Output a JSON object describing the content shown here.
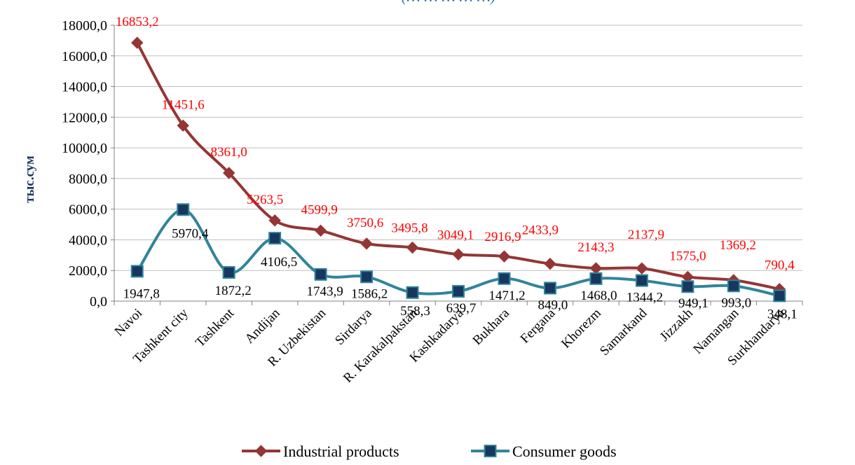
{
  "chart_data": {
    "type": "line",
    "title": "(… … … … …)",
    "ylabel": "тыс.сум",
    "ylim": [
      0,
      18000
    ],
    "yticks": [
      "0,0",
      "2000,0",
      "4000,0",
      "6000,0",
      "8000,0",
      "10000,0",
      "12000,0",
      "14000,0",
      "16000,0",
      "18000,0"
    ],
    "grid": "horizontal",
    "legend": "bottom",
    "categories": [
      "Navoi",
      "Tashkent city",
      "Tashkent",
      "Andijan",
      "R. Uzbekistan",
      "Sirdarya",
      "R. Karakalpakstan",
      "Kashkadarya",
      "Bukhara",
      "Fergana",
      "Khorezm",
      "Samarkand",
      "Jizzakh",
      "Namangan",
      "Surkhandarya"
    ],
    "series": [
      {
        "name": "Industrial products",
        "color": "#943634",
        "marker": "diamond",
        "values": [
          16853.2,
          11451.6,
          8361.0,
          5263.5,
          4599.9,
          3750.6,
          3495.8,
          3049.1,
          2916.9,
          2433.9,
          2143.3,
          2137.9,
          1575.0,
          1369.2,
          790.4
        ],
        "labels": [
          "16853,2",
          "11451,6",
          "8361,0",
          "5263,5",
          "4599,9",
          "3750,6",
          "3495,8",
          "3049,1",
          "2916,9",
          "2433,9",
          "2143,3",
          "2137,9",
          "1575,0",
          "1369,2",
          "790,4"
        ],
        "label_color": "#ff0000"
      },
      {
        "name": "Consumer goods",
        "color": "#31849b",
        "marker": "square",
        "marker_color": "#17375e",
        "values": [
          1947.8,
          5970.4,
          1872.2,
          4106.5,
          1743.9,
          1586.2,
          558.3,
          639.7,
          1471.2,
          849.0,
          1468.0,
          1344.2,
          949.1,
          993.0,
          348.1
        ],
        "labels": [
          "1947,8",
          "5970,4",
          "1872,2",
          "4106,5",
          "1743,9",
          "1586,2",
          "558,3",
          "639,7",
          "1471,2",
          "849,0",
          "1468,0",
          "1344,2",
          "949,1",
          "993,0",
          "348,1"
        ],
        "label_color": "#000000"
      }
    ]
  }
}
